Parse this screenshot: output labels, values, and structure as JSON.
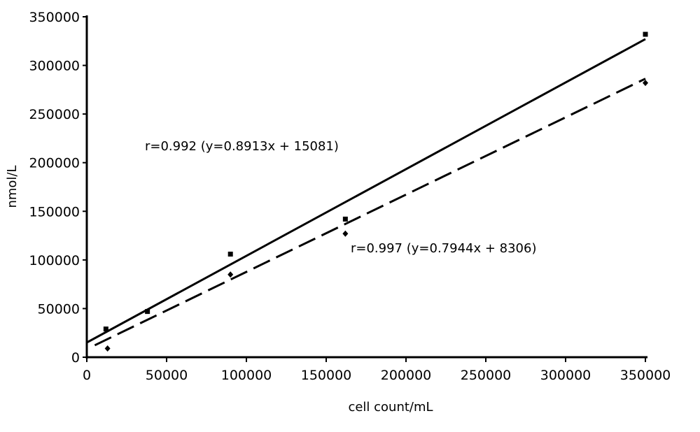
{
  "chart_data": {
    "type": "scatter",
    "xlabel": "cell count/mL",
    "ylabel": "nmol/L",
    "xlim": [
      0,
      350000
    ],
    "ylim": [
      0,
      350000
    ],
    "xticks": [
      0,
      50000,
      100000,
      150000,
      200000,
      250000,
      300000,
      350000
    ],
    "yticks": [
      0,
      50000,
      100000,
      150000,
      200000,
      250000,
      300000,
      350000
    ],
    "xtick_labels": [
      "0",
      "50000",
      "100000",
      "150000",
      "200000",
      "250000",
      "300000",
      "350000"
    ],
    "ytick_labels": [
      "0",
      "50000",
      "100000",
      "150000",
      "200000",
      "250000",
      "300000",
      "350000"
    ],
    "grid": false,
    "series": [
      {
        "marker": "square",
        "line_style": "solid",
        "points": [
          {
            "x": 12000,
            "y": 29000
          },
          {
            "x": 38000,
            "y": 47000
          },
          {
            "x": 90000,
            "y": 106000
          },
          {
            "x": 162000,
            "y": 142000
          },
          {
            "x": 350000,
            "y": 332000
          }
        ],
        "fit": {
          "slope": 0.8913,
          "intercept": 15081,
          "x_range": [
            0,
            350000
          ]
        }
      },
      {
        "marker": "diamond",
        "line_style": "dashed",
        "points": [
          {
            "x": 13000,
            "y": 9000
          },
          {
            "x": 90000,
            "y": 85000
          },
          {
            "x": 162000,
            "y": 127000
          },
          {
            "x": 350000,
            "y": 282000
          }
        ],
        "fit": {
          "slope": 0.7944,
          "intercept": 8306,
          "x_range": [
            5000,
            350000
          ]
        }
      }
    ],
    "annotations": [
      "r=0.992 (y=0.8913x + 15081)",
      "r=0.997 (y=0.7944x + 8306)"
    ]
  }
}
